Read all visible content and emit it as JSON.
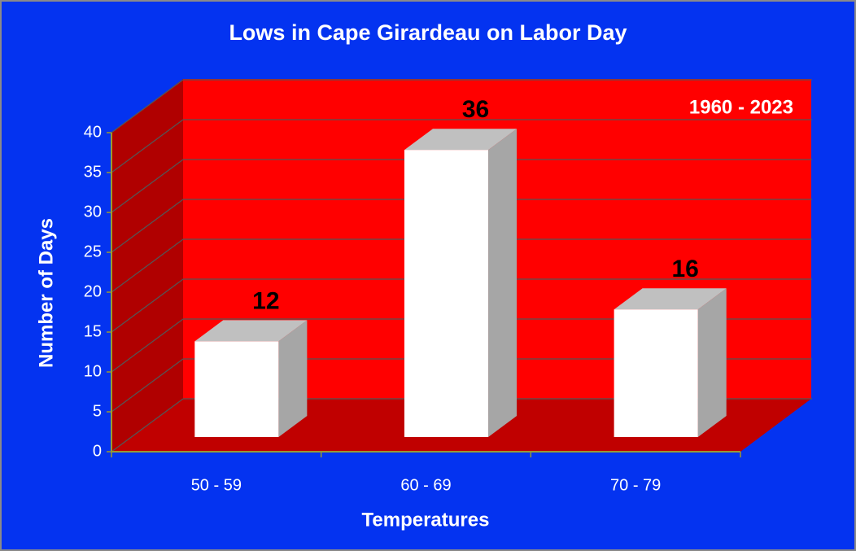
{
  "chart_data": {
    "type": "bar",
    "title": "Lows in Cape Girardeau on Labor Day",
    "annotation": "1960 - 2023",
    "x_label": "Temperatures",
    "y_label": "Number of Days",
    "categories": [
      "50 - 59",
      "60 - 69",
      "70 - 79"
    ],
    "values": [
      12,
      36,
      16
    ],
    "color": "#ffffff",
    "ylim": [
      0,
      40
    ],
    "yticks": [
      0,
      5,
      10,
      15,
      20,
      25,
      30,
      35,
      40
    ],
    "grid": true
  }
}
